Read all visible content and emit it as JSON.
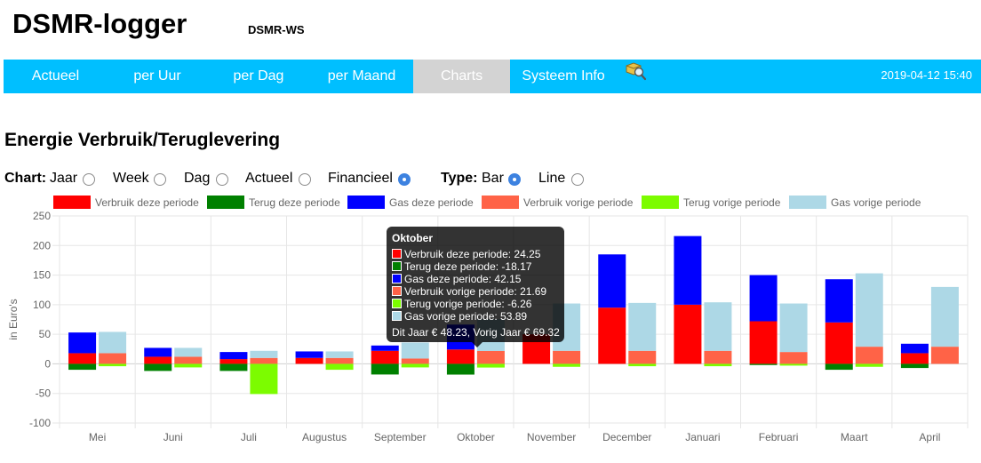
{
  "app": {
    "title": "DSMR-logger",
    "subtitle": "DSMR-WS"
  },
  "nav": {
    "items": [
      {
        "label": "Actueel",
        "active": false
      },
      {
        "label": "per Uur",
        "active": false
      },
      {
        "label": "per Dag",
        "active": false
      },
      {
        "label": "per Maand",
        "active": false
      },
      {
        "label": "Charts",
        "active": true
      },
      {
        "label": "Systeem Info",
        "active": false
      }
    ],
    "icon": "search-settings-icon",
    "datetime": "2019-04-12 15:40"
  },
  "section": {
    "title": "Energie Verbruik/Teruglevering"
  },
  "controls": {
    "chart_label": "Chart:",
    "chart_options": [
      {
        "label": "Jaar",
        "checked": false
      },
      {
        "label": "Week",
        "checked": false
      },
      {
        "label": "Dag",
        "checked": false
      },
      {
        "label": "Actueel",
        "checked": false
      },
      {
        "label": "Financieel",
        "checked": true
      }
    ],
    "type_label": "Type:",
    "type_options": [
      {
        "label": "Bar",
        "checked": true
      },
      {
        "label": "Line",
        "checked": false
      }
    ]
  },
  "tooltip": {
    "title": "Oktober",
    "lines": [
      {
        "text": "Verbruik deze periode: 24.25",
        "color": "#ff0000"
      },
      {
        "text": "Terug deze periode: -18.17",
        "color": "#008000"
      },
      {
        "text": "Gas deze periode: 42.15",
        "color": "#0000ff"
      },
      {
        "text": "Verbruik vorige periode: 21.69",
        "color": "#ff6347"
      },
      {
        "text": "Terug vorige periode: -6.26",
        "color": "#7cfc00"
      },
      {
        "text": "Gas vorige periode: 53.89",
        "color": "#add8e6"
      }
    ],
    "footer": "Dit Jaar € 48.23, Vorig Jaar € 69.32"
  },
  "chart_data": {
    "type": "bar",
    "stacked": true,
    "categories": [
      "Mei",
      "Juni",
      "Juli",
      "Augustus",
      "September",
      "Oktober",
      "November",
      "December",
      "Januari",
      "Februari",
      "Maart",
      "April"
    ],
    "ylabel": "in Euro's",
    "ylim": [
      -100,
      250
    ],
    "yticks": [
      250,
      200,
      150,
      100,
      50,
      0,
      -50,
      -100
    ],
    "grid": true,
    "legend_position": "top",
    "stacks": [
      "deze",
      "vorige"
    ],
    "series": [
      {
        "name": "Verbruik deze periode",
        "stack": "deze",
        "color": "#ff0000",
        "values": [
          18,
          12,
          8,
          10,
          22,
          24.25,
          50,
          95,
          100,
          72,
          70,
          18
        ]
      },
      {
        "name": "Terug deze periode",
        "stack": "deze",
        "color": "#008000",
        "values": [
          -10,
          -12,
          -12,
          0,
          -18,
          -18.17,
          0,
          0,
          0,
          -2,
          -10,
          -7
        ]
      },
      {
        "name": "Gas deze periode",
        "stack": "deze",
        "color": "#0000ff",
        "values": [
          35,
          15,
          12,
          11,
          9,
          42.15,
          0,
          90,
          116,
          78,
          73,
          16
        ]
      },
      {
        "name": "Verbruik vorige periode",
        "stack": "vorige",
        "color": "#ff6347",
        "values": [
          18,
          12,
          10,
          10,
          9,
          21.69,
          22,
          22,
          22,
          20,
          29,
          29
        ]
      },
      {
        "name": "Terug vorige periode",
        "stack": "vorige",
        "color": "#7cfc00",
        "values": [
          -4,
          -6,
          -51,
          -10,
          -6,
          -6.26,
          -5,
          -4,
          -4,
          -3,
          -5,
          0
        ]
      },
      {
        "name": "Gas vorige periode",
        "stack": "vorige",
        "color": "#add8e6",
        "values": [
          36,
          15,
          12,
          11,
          27,
          53.89,
          80,
          81,
          82,
          82,
          124,
          101
        ]
      }
    ]
  }
}
